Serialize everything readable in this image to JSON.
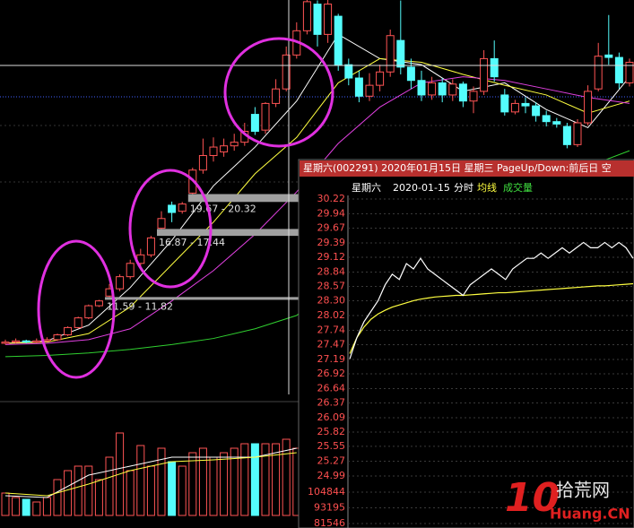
{
  "chart_data": [
    {
      "type": "candlestick",
      "ylim": [
        3.78,
        36.34
      ],
      "open": [
        8.0,
        8.1,
        8.2,
        8.1,
        8.2,
        8.3,
        8.7,
        9.3,
        10.1,
        11.1,
        11.9,
        12.5,
        13.5,
        14.6,
        15.3,
        17.5,
        19.4,
        18.9,
        20.4,
        22.3,
        23.5,
        23.8,
        24.3,
        24.6,
        26.9,
        25.6,
        27.8,
        29.0,
        31.8,
        33.8,
        36.0,
        33.5,
        35.0,
        31.0,
        29.9,
        28.4,
        29.3,
        30.4,
        33.0,
        30.8,
        29.7,
        28.5,
        29.5,
        28.5,
        29.4,
        28.0,
        28.8,
        31.5,
        28.5,
        27.1,
        27.8,
        27.6,
        26.8,
        26.3,
        25.9,
        24.4,
        26.2,
        29.0,
        31.8,
        31.6,
        29.5
      ],
      "close": [
        8.1,
        8.2,
        8.1,
        8.2,
        8.3,
        8.7,
        9.3,
        10.1,
        11.1,
        11.5,
        12.5,
        13.5,
        14.6,
        15.3,
        16.7,
        18.3,
        18.8,
        19.5,
        22.3,
        23.5,
        24.2,
        24.3,
        24.6,
        25.5,
        25.5,
        27.8,
        29.0,
        31.8,
        33.8,
        36.2,
        33.5,
        36.0,
        31.0,
        29.9,
        28.4,
        29.3,
        30.4,
        33.4,
        30.8,
        29.7,
        28.5,
        29.5,
        28.5,
        29.4,
        28.0,
        28.8,
        31.5,
        30.0,
        27.1,
        27.8,
        27.6,
        26.8,
        26.3,
        26.1,
        24.4,
        26.2,
        28.8,
        31.7,
        31.6,
        29.5,
        31.2
      ],
      "high": [
        8.3,
        8.4,
        8.3,
        8.4,
        8.5,
        8.8,
        9.4,
        10.2,
        11.2,
        11.59,
        12.9,
        13.7,
        14.9,
        15.8,
        16.87,
        18.9,
        19.7,
        19.67,
        22.5,
        24.9,
        25.0,
        24.9,
        25.3,
        26.2,
        27.5,
        27.9,
        29.8,
        32.5,
        34.5,
        36.5,
        36.3,
        36.4,
        35.2,
        31.5,
        30.5,
        30.3,
        31.0,
        33.9,
        36.3,
        31.5,
        30.5,
        30.0,
        29.9,
        29.8,
        29.6,
        29.2,
        32.2,
        33.0,
        29.0,
        28.1,
        28.3,
        27.9,
        27.2,
        26.6,
        26.2,
        26.5,
        29.3,
        32.8,
        35.1,
        32.0,
        31.5
      ],
      "low": [
        7.9,
        8.0,
        8.0,
        8.0,
        8.1,
        8.2,
        8.6,
        9.2,
        10.0,
        11.0,
        11.82,
        12.3,
        13.3,
        14.3,
        15.1,
        17.44,
        18.0,
        18.7,
        20.32,
        22.0,
        23.0,
        23.4,
        23.9,
        24.3,
        25.2,
        25.3,
        27.5,
        28.8,
        31.5,
        33.5,
        32.5,
        32.8,
        30.5,
        29.3,
        27.9,
        28.0,
        28.8,
        30.0,
        30.2,
        29.0,
        28.0,
        28.1,
        27.9,
        28.0,
        27.5,
        27.0,
        28.5,
        29.6,
        26.8,
        26.9,
        27.0,
        26.3,
        25.9,
        25.8,
        24.1,
        24.2,
        26.0,
        28.8,
        31.0,
        29.0,
        29.2
      ],
      "series": [
        {
          "color": "#ffffff",
          "x": [
            0,
            4,
            8,
            12,
            16,
            20,
            24,
            28,
            32,
            36,
            40,
            44,
            48,
            52,
            56,
            60
          ],
          "values": [
            8.0,
            8.2,
            9.5,
            12.6,
            16.5,
            21.0,
            24.2,
            28.0,
            33.5,
            31.5,
            31.0,
            28.8,
            29.5,
            27.3,
            25.8,
            30.0
          ]
        },
        {
          "color": "#ffff40",
          "x": [
            0,
            4,
            8,
            12,
            16,
            20,
            24,
            28,
            32,
            36,
            40,
            44,
            48,
            52,
            56,
            60
          ],
          "values": [
            8.0,
            8.1,
            8.8,
            11.0,
            14.5,
            18.0,
            22.0,
            25.0,
            29.5,
            31.5,
            31.2,
            30.2,
            29.3,
            28.5,
            27.0,
            28.0
          ]
        },
        {
          "color": "#e040e0",
          "x": [
            0,
            4,
            8,
            12,
            16,
            20,
            24,
            28,
            32,
            36,
            40,
            44,
            48,
            52,
            56,
            60
          ],
          "values": [
            7.9,
            8.0,
            8.3,
            9.2,
            11.5,
            14.0,
            17.0,
            20.5,
            24.5,
            27.5,
            29.5,
            30.0,
            29.7,
            29.0,
            28.3,
            27.8
          ]
        },
        {
          "color": "#30d030",
          "x": [
            0,
            4,
            8,
            12,
            16,
            20,
            24,
            28,
            32,
            36,
            40,
            44,
            48,
            52,
            56,
            60
          ],
          "values": [
            6.9,
            7.0,
            7.2,
            7.5,
            7.9,
            8.4,
            9.2,
            10.3,
            13.2,
            14.8,
            16.4,
            18.0,
            19.6,
            21.2,
            22.6,
            23.9
          ]
        }
      ],
      "gaps": [
        {
          "label": "11.59 - 11.82",
          "low": 11.59,
          "high": 11.82
        },
        {
          "label": "16.87 - 17.44",
          "low": 16.87,
          "high": 17.44
        },
        {
          "label": "19.67 - 20.32",
          "low": 19.67,
          "high": 20.32
        }
      ]
    },
    {
      "type": "bar",
      "ylim": [
        0,
        120
      ],
      "values": [
        25,
        20,
        18,
        15,
        20,
        40,
        50,
        55,
        55,
        40,
        65,
        92,
        50,
        78,
        55,
        75,
        60,
        55,
        70,
        75,
        65,
        70,
        75,
        80,
        80,
        80,
        80,
        85,
        75
      ],
      "series": [
        {
          "color": "#ffffff",
          "x": [
            0,
            4,
            8,
            12,
            16,
            20,
            24,
            28
          ],
          "values": [
            22,
            20,
            45,
            55,
            65,
            65,
            65,
            75
          ]
        },
        {
          "color": "#ffff40",
          "x": [
            0,
            4,
            8,
            12,
            16,
            20,
            24,
            28
          ],
          "values": [
            25,
            22,
            35,
            50,
            60,
            62,
            65,
            70
          ]
        }
      ]
    },
    {
      "type": "line",
      "title": "星期六(002291) 2020年01月15日 星期三 PageUp/Down:前后日 空",
      "stock": "星期六",
      "date": "2020-01-15",
      "mode": "分时",
      "volume_label": "成交量",
      "ylim": [
        24.99,
        30.22
      ],
      "yticks": [
        30.22,
        29.94,
        29.67,
        29.39,
        29.12,
        28.84,
        28.57,
        {
          "value": 28.3,
          "label": "28.30"
        },
        28.02,
        27.74,
        27.47,
        27.19,
        26.92,
        26.64,
        26.37,
        26.09,
        25.82,
        25.55,
        25.27,
        24.99
      ],
      "y2lim": [
        81546,
        104844
      ],
      "y2ticks": [
        104844,
        93195,
        81546
      ],
      "series": [
        {
          "color": "#ffffff",
          "values": [
            27.2,
            27.6,
            27.9,
            28.1,
            28.3,
            28.6,
            28.8,
            28.7,
            29.0,
            28.9,
            29.1,
            28.9,
            28.8,
            28.7,
            28.6,
            28.5,
            28.4,
            28.6,
            28.7,
            28.8,
            28.9,
            28.8,
            28.7,
            28.9,
            29.0,
            29.1,
            29.1,
            29.2,
            29.1,
            29.2,
            29.3,
            29.2,
            29.3,
            29.4,
            29.3,
            29.3,
            29.4,
            29.3,
            29.4,
            29.3,
            29.1
          ]
        },
        {
          "name": "均线",
          "color": "#ffff40",
          "values": [
            27.3,
            27.6,
            27.8,
            27.95,
            28.05,
            28.12,
            28.18,
            28.22,
            28.26,
            28.3,
            28.33,
            28.35,
            28.37,
            28.38,
            28.39,
            28.4,
            28.4,
            28.41,
            28.42,
            28.43,
            28.44,
            28.45,
            28.45,
            28.46,
            28.47,
            28.48,
            28.49,
            28.5,
            28.51,
            28.52,
            28.53,
            28.54,
            28.55,
            28.56,
            28.57,
            28.58,
            28.58,
            28.59,
            28.6,
            28.61,
            28.62
          ]
        }
      ]
    }
  ],
  "watermark": {
    "number": "10",
    "name": "拾荒网",
    "domain": "Huang.CN"
  }
}
